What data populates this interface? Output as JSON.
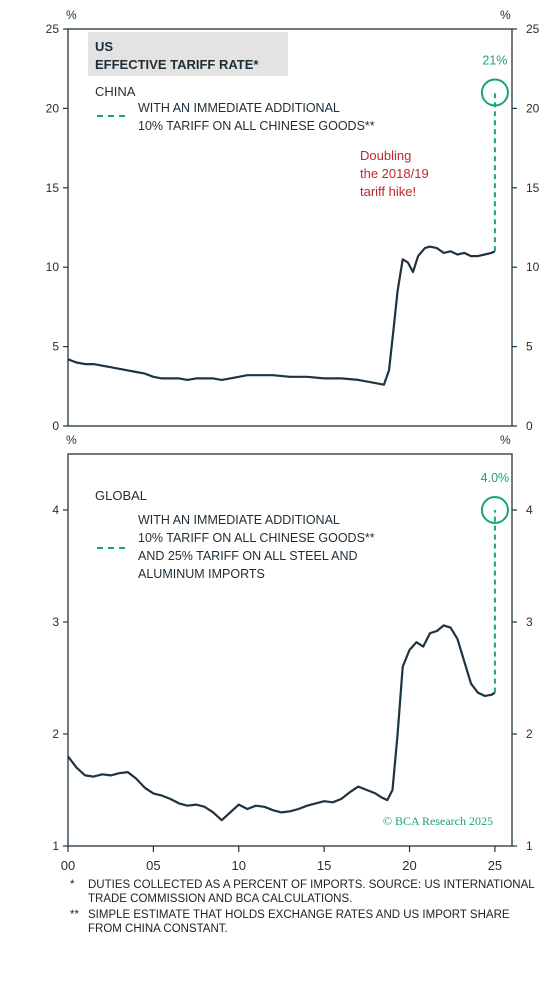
{
  "chart_data": [
    {
      "type": "line",
      "title": "US EFFECTIVE TARIFF RATE*",
      "panel_label": "CHINA",
      "ylabel": "%",
      "ylim": [
        0,
        25
      ],
      "yticks": [
        0,
        5,
        10,
        15,
        20,
        25
      ],
      "xlim": [
        2000,
        2026
      ],
      "series": [
        {
          "name": "CHINA",
          "x": [
            2000,
            2000.5,
            2001,
            2001.5,
            2002,
            2002.5,
            2003,
            2003.5,
            2004,
            2004.5,
            2005,
            2005.5,
            2006,
            2006.5,
            2007,
            2007.5,
            2008,
            2008.5,
            2009,
            2009.5,
            2010,
            2010.5,
            2011,
            2011.5,
            2012,
            2013,
            2014,
            2015,
            2016,
            2017,
            2018,
            2018.5,
            2018.8,
            2019,
            2019.3,
            2019.6,
            2019.9,
            2020.2,
            2020.5,
            2020.9,
            2021.2,
            2021.6,
            2022,
            2022.4,
            2022.8,
            2023.2,
            2023.6,
            2024,
            2024.4,
            2024.8,
            2025
          ],
          "y": [
            4.2,
            4.0,
            3.9,
            3.9,
            3.8,
            3.7,
            3.6,
            3.5,
            3.4,
            3.3,
            3.1,
            3.0,
            3.0,
            3.0,
            2.9,
            3.0,
            3.0,
            3.0,
            2.9,
            3.0,
            3.1,
            3.2,
            3.2,
            3.2,
            3.2,
            3.1,
            3.1,
            3.0,
            3.0,
            2.9,
            2.7,
            2.6,
            3.5,
            5.5,
            8.5,
            10.5,
            10.3,
            9.7,
            10.7,
            11.2,
            11.3,
            11.2,
            10.9,
            11.0,
            10.8,
            10.9,
            10.7,
            10.7,
            10.8,
            10.9,
            11.0
          ]
        },
        {
          "name": "WITH AN IMMEDIATE ADDITIONAL 10% TARIFF ON ALL CHINESE GOODS**",
          "style": "dashed",
          "x": [
            2025,
            2025
          ],
          "y": [
            11.0,
            21.0
          ]
        }
      ],
      "annotations": {
        "endpoint_value": "21%",
        "callout": [
          "Doubling",
          "the 2018/19",
          "tariff hike!"
        ],
        "legend_line1": "WITH AN IMMEDIATE ADDITIONAL",
        "legend_line2": "10% TARIFF ON ALL CHINESE GOODS**"
      }
    },
    {
      "type": "line",
      "panel_label": "GLOBAL",
      "ylabel": "%",
      "ylim": [
        1,
        4.5
      ],
      "yticks": [
        1,
        2,
        3,
        4
      ],
      "xlim": [
        2000,
        2026
      ],
      "xticks": [
        "00",
        "05",
        "10",
        "15",
        "20",
        "25"
      ],
      "series": [
        {
          "name": "GLOBAL",
          "x": [
            2000,
            2000.5,
            2001,
            2001.5,
            2002,
            2002.5,
            2003,
            2003.5,
            2004,
            2004.5,
            2005,
            2005.5,
            2006,
            2006.5,
            2007,
            2007.5,
            2008,
            2008.5,
            2009,
            2009.5,
            2010,
            2010.5,
            2011,
            2011.5,
            2012,
            2012.5,
            2013,
            2013.5,
            2014,
            2014.5,
            2015,
            2015.5,
            2016,
            2016.5,
            2017,
            2017.5,
            2018,
            2018.4,
            2018.7,
            2019,
            2019.3,
            2019.6,
            2020,
            2020.4,
            2020.8,
            2021.2,
            2021.6,
            2022,
            2022.4,
            2022.8,
            2023.2,
            2023.6,
            2024,
            2024.4,
            2024.8,
            2025
          ],
          "y": [
            1.8,
            1.7,
            1.63,
            1.62,
            1.64,
            1.63,
            1.65,
            1.66,
            1.6,
            1.52,
            1.47,
            1.45,
            1.42,
            1.38,
            1.36,
            1.37,
            1.35,
            1.3,
            1.23,
            1.3,
            1.37,
            1.33,
            1.36,
            1.35,
            1.32,
            1.3,
            1.31,
            1.33,
            1.36,
            1.38,
            1.4,
            1.39,
            1.42,
            1.48,
            1.53,
            1.5,
            1.47,
            1.43,
            1.41,
            1.5,
            2.0,
            2.6,
            2.75,
            2.82,
            2.78,
            2.9,
            2.92,
            2.97,
            2.95,
            2.85,
            2.65,
            2.45,
            2.37,
            2.34,
            2.35,
            2.37
          ]
        },
        {
          "name": "WITH AN IMMEDIATE ADDITIONAL 10% TARIFF ON ALL CHINESE GOODS** AND 25% TARIFF ON ALL STEEL AND ALUMINUM IMPORTS",
          "style": "dashed",
          "x": [
            2025,
            2025
          ],
          "y": [
            2.37,
            4.0
          ]
        }
      ],
      "annotations": {
        "endpoint_value": "4.0%",
        "legend_lines": [
          "WITH AN IMMEDIATE ADDITIONAL",
          "10% TARIFF ON ALL CHINESE GOODS**",
          "AND 25% TARIFF ON ALL STEEL AND",
          "ALUMINUM IMPORTS"
        ],
        "source_logo": "© BCA Research 2025"
      }
    }
  ],
  "notes": [
    {
      "mark": "*",
      "text": "DUTIES COLLECTED AS A PERCENT OF IMPORTS. SOURCE: US INTERNATIONAL TRADE COMMISSION AND BCA CALCULATIONS."
    },
    {
      "mark": "**",
      "text": "SIMPLE ESTIMATE THAT HOLDS EXCHANGE RATES AND US IMPORT SHARE FROM CHINA CONSTANT."
    }
  ],
  "colors": {
    "line": "#1f3440",
    "accent": "#1aa37a",
    "callout": "#c0272d",
    "title_bg": "#e3e3e3",
    "frame": "#1f3440"
  }
}
